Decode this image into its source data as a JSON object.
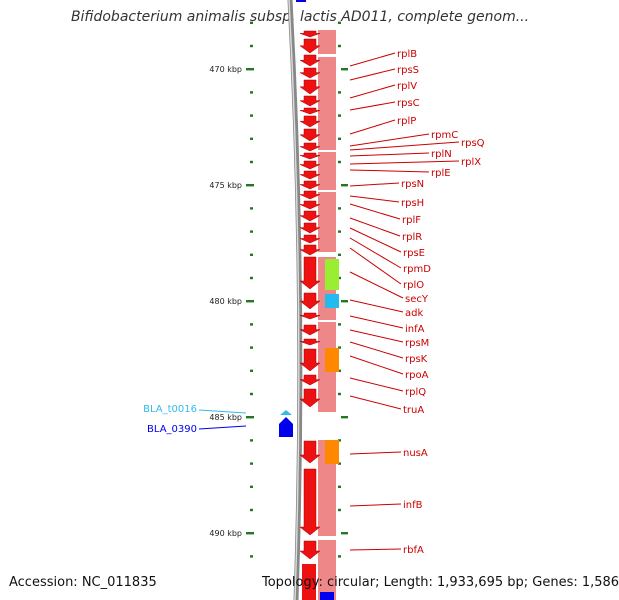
{
  "title": "Bifidobacterium animalis subsp. lactis AD011, complete genom...",
  "footer": {
    "accession": "Accession: NC_011835",
    "topology": "Topology: circular; Length: 1,933,695 bp; Genes: 1,586"
  },
  "colors": {
    "gene_arrow": "#ee1111",
    "gene_band": "#ee8888",
    "kbp_tick": "#227722",
    "reverse_strand": "#0000ee",
    "label_line": "#cc0000",
    "trna_label": "#33bbee",
    "cog_green": "#99ee33",
    "cog_cyan": "#22bbee",
    "cog_orange": "#ff8800",
    "backbone": "#888888"
  },
  "scale": {
    "unit": "kbp",
    "marks": [
      {
        "kbp": 470,
        "label": "470 kbp"
      },
      {
        "kbp": 475,
        "label": "475 kbp"
      },
      {
        "kbp": 480,
        "label": "480 kbp"
      },
      {
        "kbp": 485,
        "label": "485 kbp"
      },
      {
        "kbp": 490,
        "label": "490 kbp"
      }
    ]
  },
  "genes": [
    {
      "name": "rplB"
    },
    {
      "name": "rpsS"
    },
    {
      "name": "rplV"
    },
    {
      "name": "rpsC"
    },
    {
      "name": "rplP"
    },
    {
      "name": "rpmC"
    },
    {
      "name": "rpsQ"
    },
    {
      "name": "rplN"
    },
    {
      "name": "rplX"
    },
    {
      "name": "rplE"
    },
    {
      "name": "rpsN"
    },
    {
      "name": "rpsH"
    },
    {
      "name": "rplF"
    },
    {
      "name": "rplR"
    },
    {
      "name": "rpsE"
    },
    {
      "name": "rpmD"
    },
    {
      "name": "rplO"
    },
    {
      "name": "secY"
    },
    {
      "name": "adk"
    },
    {
      "name": "infA"
    },
    {
      "name": "rpsM"
    },
    {
      "name": "rpsK"
    },
    {
      "name": "rpoA"
    },
    {
      "name": "rplQ"
    },
    {
      "name": "truA"
    },
    {
      "name": "nusA"
    },
    {
      "name": "infB"
    },
    {
      "name": "rbfA"
    }
  ],
  "reverse_strand_genes": [
    {
      "name": "BLA_t0016"
    },
    {
      "name": "BLA_0390"
    }
  ]
}
